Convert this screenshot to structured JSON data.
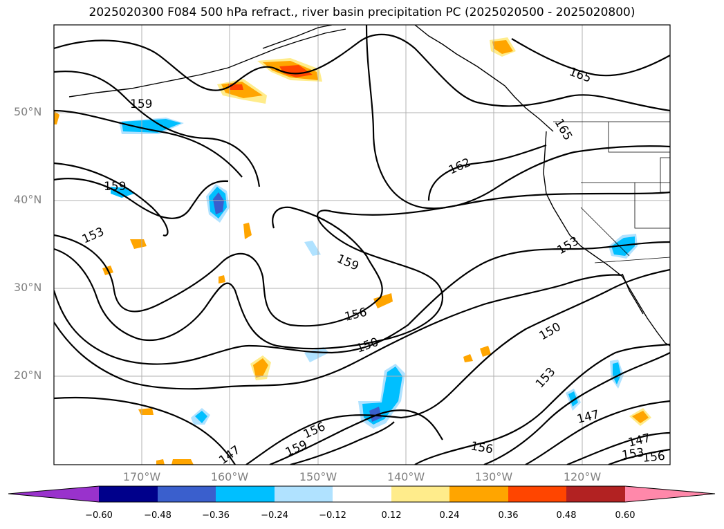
{
  "title": "2025020300 F084 500 hPa refract., river basin precipitation PC (2025020500 - 2025020800)",
  "map": {
    "lat_labels": [
      "50°N",
      "40°N",
      "30°N",
      "20°N"
    ],
    "lon_labels": [
      "170°W",
      "160°W",
      "150°W",
      "140°W",
      "130°W",
      "120°W"
    ],
    "contour_labels": [
      "165",
      "165",
      "162",
      "159",
      "159",
      "159",
      "156",
      "153",
      "153",
      "150",
      "150",
      "153",
      "156",
      "159",
      "147",
      "147",
      "156",
      "147",
      "153",
      "156"
    ],
    "contour_color": "#000000",
    "grid_color": "#b0b0b0"
  },
  "colorbar": {
    "tick_labels": [
      "−0.60",
      "−0.48",
      "−0.36",
      "−0.24",
      "−0.12",
      "0.12",
      "0.24",
      "0.36",
      "0.48",
      "0.60"
    ],
    "colors": [
      "#9932cc",
      "#00008b",
      "#3a5fcd",
      "#00bfff",
      "#b0e2ff",
      "#ffffff",
      "#ffec8b",
      "#ffa500",
      "#ff4500",
      "#b22222",
      "#ff88aa"
    ]
  }
}
